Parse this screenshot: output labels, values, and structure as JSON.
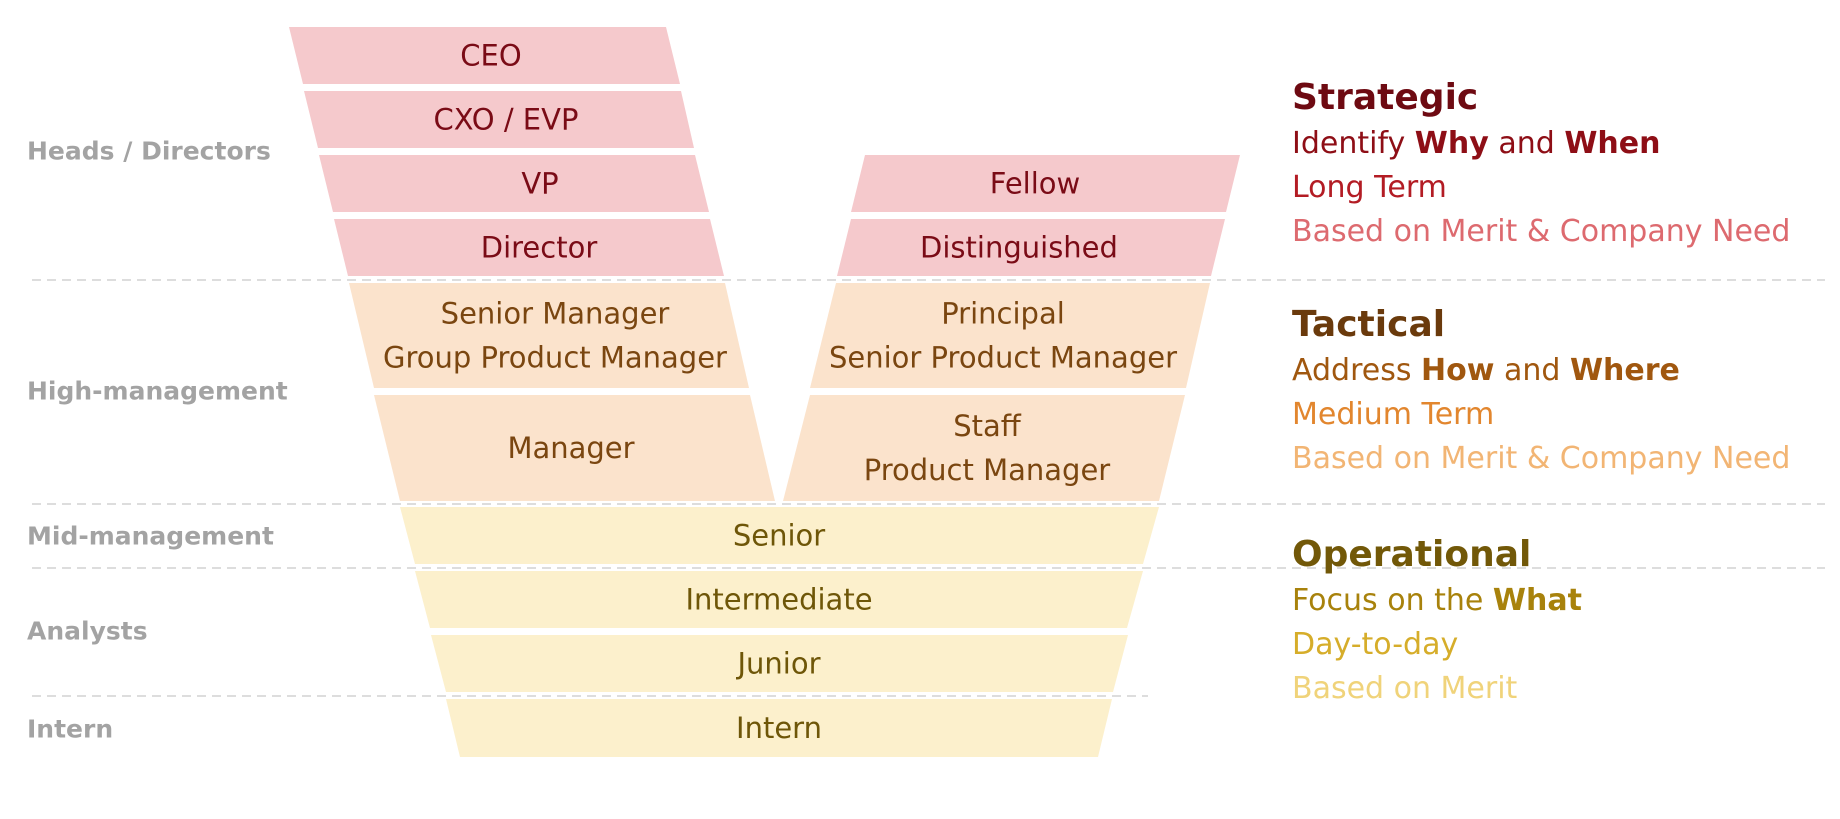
{
  "colors": {
    "strategic_fill": "#f5c9cc",
    "strategic_text": "#7a0b16",
    "tactical_fill": "#fbe3cc",
    "tactical_text": "#7a4610",
    "operational_fill": "#fcf0cc",
    "operational_text": "#6e5608",
    "level_label": "#a3a3a3",
    "divider": "#dddddd"
  },
  "levels": [
    {
      "id": "heads",
      "label": "Heads / Directors"
    },
    {
      "id": "high",
      "label": "High-management"
    },
    {
      "id": "mid",
      "label": "Mid-management"
    },
    {
      "id": "analysts",
      "label": "Analysts"
    },
    {
      "id": "intern",
      "label": "Intern"
    }
  ],
  "management_track": [
    {
      "tier": "strategic",
      "lines": [
        "CEO"
      ]
    },
    {
      "tier": "strategic",
      "lines": [
        "CXO / EVP"
      ]
    },
    {
      "tier": "strategic",
      "lines": [
        "VP"
      ]
    },
    {
      "tier": "strategic",
      "lines": [
        "Director"
      ]
    },
    {
      "tier": "tactical",
      "lines": [
        "Senior Manager",
        "Group Product Manager"
      ]
    },
    {
      "tier": "tactical",
      "lines": [
        "Manager"
      ]
    }
  ],
  "ic_track": [
    {
      "tier": "strategic",
      "lines": [
        "Fellow"
      ]
    },
    {
      "tier": "strategic",
      "lines": [
        "Distinguished"
      ]
    },
    {
      "tier": "tactical",
      "lines": [
        "Principal",
        "Senior Product Manager"
      ]
    },
    {
      "tier": "tactical",
      "lines": [
        "Staff",
        "Product Manager"
      ]
    }
  ],
  "shared_track": [
    {
      "tier": "operational",
      "lines": [
        "Senior"
      ]
    },
    {
      "tier": "operational",
      "lines": [
        "Intermediate"
      ]
    },
    {
      "tier": "operational",
      "lines": [
        "Junior"
      ]
    },
    {
      "tier": "operational",
      "lines": [
        "Intern"
      ]
    }
  ],
  "strategic": {
    "title": "Strategic",
    "focus_prefix": "Identify ",
    "focus_word1": "Why",
    "focus_join": " and ",
    "focus_word2": "When",
    "term": "Long Term",
    "basis": "Based on Merit & Company Need",
    "title_color": "#6e0a12",
    "focus_color": "#8e0e16",
    "term_color": "#b31c24",
    "basis_color": "#dd6a6f"
  },
  "tactical": {
    "title": "Tactical",
    "focus_prefix": "Address ",
    "focus_word1": "How",
    "focus_join": " and ",
    "focus_word2": "Where",
    "term": "Medium Term",
    "basis": "Based on Merit & Company Need",
    "title_color": "#6a3a0c",
    "focus_color": "#a0570f",
    "term_color": "#e2862e",
    "basis_color": "#f2b574"
  },
  "operational": {
    "title": "Operational",
    "focus_prefix": "Focus on the ",
    "focus_word1": "What",
    "term": "Day-to-day",
    "basis": "Based on Merit",
    "title_color": "#725808",
    "focus_color": "#a8820c",
    "term_color": "#d6ad2a",
    "basis_color": "#f0d37a"
  }
}
